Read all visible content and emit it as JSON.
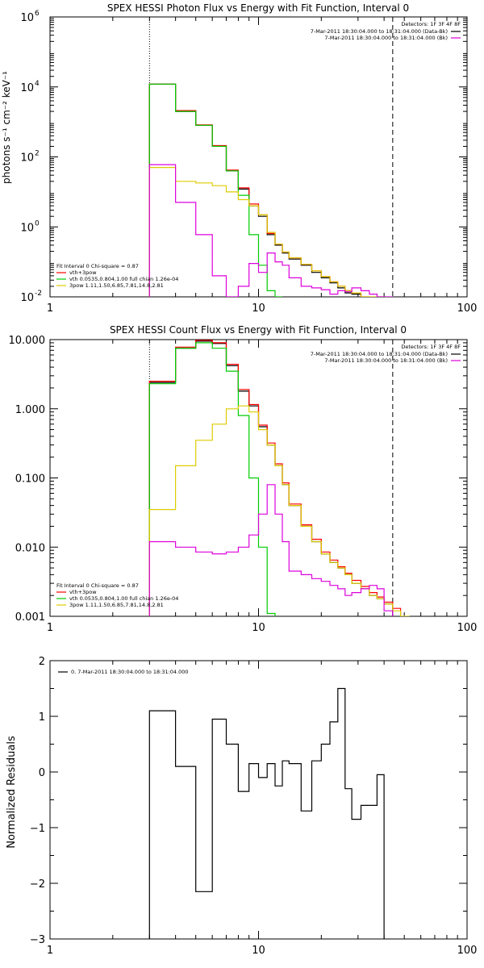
{
  "chart_data": [
    {
      "type": "line",
      "step": true,
      "title": "SPEX HESSI Photon Flux vs Energy with Fit Function, Interval 0",
      "ylabel": "photons s⁻¹ cm⁻² keV⁻¹",
      "xlabel": "",
      "xlog": true,
      "ylog": true,
      "xlim": [
        1,
        100
      ],
      "ylim": [
        0.01,
        1000000
      ],
      "x_ticks": [
        {
          "v": 1,
          "label": "1"
        },
        {
          "v": 10,
          "label": "10"
        },
        {
          "v": 100,
          "label": "100"
        }
      ],
      "y_ticks": [
        {
          "v": 0.01,
          "label": "10",
          "exp": "-2"
        },
        {
          "v": 1,
          "label": "10",
          "exp": "0"
        },
        {
          "v": 100,
          "label": "10",
          "exp": "2"
        },
        {
          "v": 10000,
          "label": "10",
          "exp": "4"
        },
        {
          "v": 1000000,
          "label": "10",
          "exp": "6"
        }
      ],
      "vlines": [
        {
          "x": 3,
          "style": "dotted"
        },
        {
          "x": 44,
          "style": "dashed"
        }
      ],
      "fill_bounds": [
        3,
        4,
        5,
        6,
        7,
        8,
        9,
        10,
        11,
        12,
        13,
        14,
        16,
        18,
        20,
        22,
        24,
        26,
        28,
        31,
        34,
        37,
        40,
        44,
        48,
        53,
        58,
        63
      ],
      "legend_right_title": "Detectors: 1F 3F 4F 8F",
      "legend_right": [
        {
          "label": "7-Mar-2011 18:30:04.000 to 18:31:04.000 (Data-Bk)",
          "color": "#000000"
        },
        {
          "label": "7-Mar-2011 18:30:04.000 to 18:31:04.000 (Bk)",
          "color": "#dd00dd"
        }
      ],
      "legend_left_title": "Fit Interval 0   Chi-square = 0.87",
      "legend_left": [
        {
          "label": "vth+3pow",
          "color": "#ff0000"
        },
        {
          "label": "vth 0.0535,0.804,1.00  full chian 1.26e-04",
          "color": "#00cc00"
        },
        {
          "label": "3pow 1.11,1.50,6.85,7.81,14.8,2.81",
          "color": "#ddcc00"
        }
      ],
      "series": [
        {
          "color": "#000000",
          "values": [
            12000,
            2000,
            800,
            200,
            40,
            12,
            4,
            2,
            0.6,
            0.3,
            0.18,
            0.12,
            0.08,
            0.05,
            0.035,
            0.025,
            0.018,
            0.013,
            0.012
          ]
        },
        {
          "color": "#ff0000",
          "values": [
            12000,
            2100,
            820,
            210,
            42,
            13,
            4.5,
            2.2,
            0.65,
            0.32,
            0.19,
            0.13,
            0.085,
            0.055,
            0.038,
            0.027,
            0.02,
            0.015,
            0.013,
            0.01
          ]
        },
        {
          "color": "#00cc00",
          "values": [
            12000,
            2000,
            800,
            200,
            40,
            8,
            0.6,
            0.08,
            0.015,
            0.003
          ]
        },
        {
          "color": "#ddcc00",
          "values": [
            50,
            20,
            18,
            15,
            10,
            6,
            4,
            2.2,
            0.7,
            0.32,
            0.19,
            0.13,
            0.085,
            0.055,
            0.038,
            0.027,
            0.02,
            0.015,
            0.013,
            0.01,
            0.007,
            0.005
          ]
        },
        {
          "color": "#dd00dd",
          "values": [
            60,
            5,
            0.6,
            0.04,
            0.01,
            0.02,
            0.09,
            0.05,
            0.18,
            0.1,
            0.08,
            0.035,
            0.02,
            0.018,
            0.016,
            0.012,
            0.015,
            0.014,
            0.018,
            0.015,
            0.012,
            0.01,
            0.007
          ]
        }
      ]
    },
    {
      "type": "line",
      "step": true,
      "title": "SPEX HESSI Count Flux vs Energy with Fit Function, Interval 0",
      "ylabel": "",
      "xlabel": "",
      "xlog": true,
      "ylog": true,
      "xlim": [
        1,
        100
      ],
      "ylim": [
        0.001,
        10
      ],
      "x_ticks": [
        {
          "v": 1,
          "label": "1"
        },
        {
          "v": 10,
          "label": "10"
        },
        {
          "v": 100,
          "label": "100"
        }
      ],
      "y_ticks": [
        {
          "v": 0.001,
          "label": "0.001"
        },
        {
          "v": 0.01,
          "label": "0.010"
        },
        {
          "v": 0.1,
          "label": "0.100"
        },
        {
          "v": 1,
          "label": "1.000"
        },
        {
          "v": 10,
          "label": "10.000"
        }
      ],
      "vlines": [
        {
          "x": 3,
          "style": "dotted"
        },
        {
          "x": 44,
          "style": "dashed"
        }
      ],
      "fill_bounds": [
        3,
        4,
        5,
        6,
        7,
        8,
        9,
        10,
        11,
        12,
        13,
        14,
        16,
        18,
        20,
        22,
        24,
        26,
        28,
        31,
        34,
        37,
        40,
        44,
        48,
        53,
        58,
        63
      ],
      "legend_right_title": "Detectors: 1F 3F 4F 8F",
      "legend_right": [
        {
          "label": "7-Mar-2011 18:30:04.000 to 18:31:04.000 (Data-Bk)",
          "color": "#000000"
        },
        {
          "label": "7-Mar-2011 18:30:04.000 to 18:31:04.000 (Bk)",
          "color": "#dd00dd"
        }
      ],
      "legend_left_title": "Fit Interval 0   Chi-square = 0.87",
      "legend_left": [
        {
          "label": "vth+3pow",
          "color": "#ff0000"
        },
        {
          "label": "vth 0.0535,0.804,1.00  full chian 1.26e-04",
          "color": "#00cc00"
        },
        {
          "label": "3pow 1.11,1.50,6.85,7.81,14.8,2.81",
          "color": "#ddcc00"
        }
      ],
      "series": [
        {
          "color": "#000000",
          "values": [
            2.4,
            7.5,
            9.5,
            8.8,
            4.2,
            1.8,
            1.1,
            0.55,
            0.3,
            0.15,
            0.08,
            0.04,
            0.02,
            0.012,
            0.008,
            0.006,
            0.005,
            0.004,
            0.003,
            0.0025,
            0.002,
            0.0018,
            0.0015
          ]
        },
        {
          "color": "#ff0000",
          "values": [
            2.5,
            7.8,
            9.8,
            9.0,
            4.4,
            1.9,
            1.15,
            0.58,
            0.32,
            0.16,
            0.085,
            0.042,
            0.021,
            0.013,
            0.0085,
            0.0065,
            0.0052,
            0.0042,
            0.0033,
            0.0027,
            0.0022,
            0.0019,
            0.0016,
            0.0013
          ]
        },
        {
          "color": "#00cc00",
          "values": [
            2.3,
            7.5,
            9.0,
            7.5,
            3.5,
            0.8,
            0.1,
            0.01,
            0.0011
          ]
        },
        {
          "color": "#ddcc00",
          "values": [
            0.035,
            0.15,
            0.35,
            0.6,
            1.0,
            1.1,
            0.9,
            0.5,
            0.3,
            0.15,
            0.08,
            0.04,
            0.02,
            0.012,
            0.008,
            0.006,
            0.005,
            0.004,
            0.003,
            0.0025,
            0.002,
            0.0018,
            0.0015,
            0.0012,
            0.001
          ]
        },
        {
          "color": "#dd00dd",
          "values": [
            0.012,
            0.01,
            0.0085,
            0.008,
            0.0085,
            0.01,
            0.015,
            0.03,
            0.08,
            0.03,
            0.012,
            0.0045,
            0.004,
            0.0035,
            0.0032,
            0.0028,
            0.0025,
            0.002,
            0.0022,
            0.0025,
            0.0028,
            0.0025,
            0.0012
          ]
        }
      ]
    },
    {
      "type": "line",
      "step": true,
      "title": "",
      "ylabel": "Normalized Residuals",
      "xlabel": "",
      "xlog": true,
      "ylog": false,
      "xlim": [
        1,
        100
      ],
      "ylim": [
        -3,
        2
      ],
      "x_ticks": [
        {
          "v": 1,
          "label": "1"
        },
        {
          "v": 10,
          "label": "10"
        },
        {
          "v": 100,
          "label": "100"
        }
      ],
      "y_ticks": [
        {
          "v": -3,
          "label": "−3"
        },
        {
          "v": -2,
          "label": "−2"
        },
        {
          "v": -1,
          "label": "−1"
        },
        {
          "v": 0,
          "label": "0"
        },
        {
          "v": 1,
          "label": "1"
        },
        {
          "v": 2,
          "label": "2"
        }
      ],
      "vlines": [],
      "bounds": [
        3,
        4,
        5,
        6,
        7,
        8,
        9,
        10,
        11,
        12,
        13,
        14,
        16,
        18,
        20,
        22,
        24,
        26,
        28,
        31,
        34,
        37,
        40,
        44
      ],
      "legend_right_title": "",
      "legend_right": [],
      "legend_left_title": "",
      "legend_left": [],
      "legend_top_left": [
        {
          "label": "0.  7-Mar-2011 18:30:04.000 to 18:31:04.000",
          "color": "#000000"
        }
      ],
      "series": [
        {
          "color": "#000000",
          "values": [
            1.1,
            0.1,
            -2.15,
            0.95,
            0.5,
            -0.35,
            0.15,
            -0.1,
            0.15,
            -0.25,
            0.2,
            0.15,
            -0.7,
            0.2,
            0.5,
            0.9,
            1.5,
            -0.3,
            -0.85,
            -0.6,
            -0.6,
            -0.05
          ]
        }
      ]
    }
  ]
}
